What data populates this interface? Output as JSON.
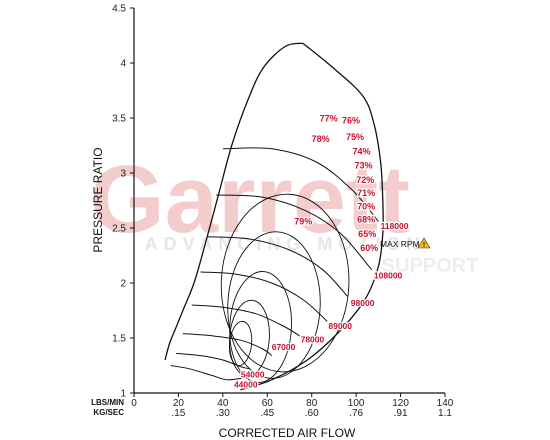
{
  "colors": {
    "label_red": "#c8102e",
    "line": "#111111",
    "watermark_red": "#f3cccc",
    "watermark_gray": "#ebebeb"
  },
  "watermark": {
    "brand": "Garrett",
    "line": "ADVANCING MOTION",
    "sub": "SUPPORT"
  },
  "chart_data": {
    "type": "line",
    "title": "",
    "xlabel": "CORRECTED AIR FLOW",
    "ylabel": "PRESSURE RATIO",
    "xlim": [
      0,
      140
    ],
    "ylim": [
      1,
      4.5
    ],
    "grid": false,
    "x_ticks": [
      0,
      20,
      40,
      60,
      80,
      100,
      120,
      140
    ],
    "x_ticks_kg": [
      ".15",
      ".30",
      ".45",
      ".60",
      ".76",
      ".91",
      "1.1"
    ],
    "x_row_labels": [
      "LBS/MIN",
      "KG/SEC"
    ],
    "y_ticks": [
      "1",
      "1.5",
      "2",
      "2.5",
      "3",
      "3.5",
      "4",
      "4.5"
    ],
    "efficiency_labels": [
      {
        "text": "77%",
        "x": 87.6,
        "y": 3.47
      },
      {
        "text": "76%",
        "x": 97.7,
        "y": 3.45
      },
      {
        "text": "75%",
        "x": 99.5,
        "y": 3.3
      },
      {
        "text": "78%",
        "x": 84.0,
        "y": 3.28
      },
      {
        "text": "74%",
        "x": 102.4,
        "y": 3.17
      },
      {
        "text": "73%",
        "x": 103.3,
        "y": 3.04
      },
      {
        "text": "72%",
        "x": 104.1,
        "y": 2.91
      },
      {
        "text": "71%",
        "x": 104.5,
        "y": 2.79
      },
      {
        "text": "70%",
        "x": 104.5,
        "y": 2.67
      },
      {
        "text": "68%",
        "x": 104.5,
        "y": 2.55
      },
      {
        "text": "79%",
        "x": 76.2,
        "y": 2.53
      },
      {
        "text": "65%",
        "x": 105.0,
        "y": 2.42
      },
      {
        "text": "60%",
        "x": 105.9,
        "y": 2.29
      }
    ],
    "speed_lines": [
      {
        "label": "44000",
        "label_pos": [
          45.0,
          1.05
        ],
        "points": [
          [
            16.5,
            1.25
          ],
          [
            25,
            1.22
          ],
          [
            35,
            1.16
          ],
          [
            42,
            1.12
          ],
          [
            50,
            1.14
          ]
        ]
      },
      {
        "label": "54000",
        "label_pos": [
          48.1,
          1.14
        ],
        "points": [
          [
            19,
            1.36
          ],
          [
            30,
            1.34
          ],
          [
            40,
            1.3
          ],
          [
            48,
            1.24
          ],
          [
            52,
            1.22
          ]
        ]
      },
      {
        "label": "67000",
        "label_pos": [
          62.0,
          1.39
        ],
        "points": [
          [
            22,
            1.54
          ],
          [
            35,
            1.52
          ],
          [
            48,
            1.48
          ],
          [
            58,
            1.4
          ],
          [
            62,
            1.34
          ]
        ]
      },
      {
        "label": "78000",
        "label_pos": [
          75.0,
          1.46
        ],
        "points": [
          [
            26,
            1.8
          ],
          [
            40,
            1.78
          ],
          [
            55,
            1.72
          ],
          [
            68,
            1.6
          ],
          [
            76,
            1.5
          ]
        ]
      },
      {
        "label": "89000",
        "label_pos": [
          87.5,
          1.58
        ],
        "points": [
          [
            30,
            2.1
          ],
          [
            46,
            2.08
          ],
          [
            62,
            2.0
          ],
          [
            76,
            1.85
          ],
          [
            87,
            1.65
          ]
        ]
      },
      {
        "label": "98000",
        "label_pos": [
          97.6,
          1.79
        ],
        "points": [
          [
            33,
            2.42
          ],
          [
            52,
            2.4
          ],
          [
            70,
            2.3
          ],
          [
            85,
            2.12
          ],
          [
            96,
            1.88
          ]
        ]
      },
      {
        "label": "108000",
        "label_pos": [
          108.0,
          2.04
        ],
        "points": [
          [
            37,
            2.8
          ],
          [
            58,
            2.78
          ],
          [
            77,
            2.66
          ],
          [
            93,
            2.45
          ],
          [
            107,
            2.12
          ]
        ]
      },
      {
        "label": "118000",
        "label_pos": [
          111.0,
          2.49
        ],
        "points": [
          [
            40,
            3.22
          ],
          [
            62,
            3.22
          ],
          [
            82,
            3.1
          ],
          [
            98,
            2.85
          ],
          [
            110,
            2.56
          ]
        ]
      }
    ],
    "surge_line": [
      [
        14,
        1.3
      ],
      [
        16,
        1.45
      ],
      [
        19,
        1.6
      ],
      [
        22,
        1.75
      ],
      [
        27,
        2.0
      ],
      [
        32,
        2.35
      ],
      [
        38,
        2.8
      ],
      [
        44,
        3.25
      ],
      [
        51,
        3.65
      ],
      [
        58,
        3.95
      ],
      [
        68,
        4.15
      ],
      [
        76,
        4.18
      ]
    ],
    "choke_line": [
      [
        76,
        4.18
      ],
      [
        90,
        3.95
      ],
      [
        103,
        3.7
      ],
      [
        108,
        3.45
      ],
      [
        111,
        3.1
      ],
      [
        112,
        2.75
      ],
      [
        112,
        2.45
      ],
      [
        110,
        2.15
      ],
      [
        104,
        1.85
      ],
      [
        92,
        1.55
      ],
      [
        78,
        1.3
      ],
      [
        62,
        1.12
      ],
      [
        48,
        1.03
      ]
    ],
    "efficiency_islands": [
      {
        "cx": 48,
        "cy": 1.45,
        "rx": 10,
        "ry": 0.1,
        "rot": -0.02
      },
      {
        "cx": 52,
        "cy": 1.5,
        "rx": 17,
        "ry": 0.18,
        "rot": -0.03
      },
      {
        "cx": 57,
        "cy": 1.6,
        "rx": 25,
        "ry": 0.28,
        "rot": -0.04
      },
      {
        "cx": 63,
        "cy": 1.8,
        "rx": 33,
        "ry": 0.42,
        "rot": -0.05
      },
      {
        "cx": 68,
        "cy": 2.0,
        "rx": 40,
        "ry": 0.58,
        "rot": -0.05
      }
    ],
    "max_rpm_label": "MAX RPM",
    "max_rpm_value": "118000"
  }
}
